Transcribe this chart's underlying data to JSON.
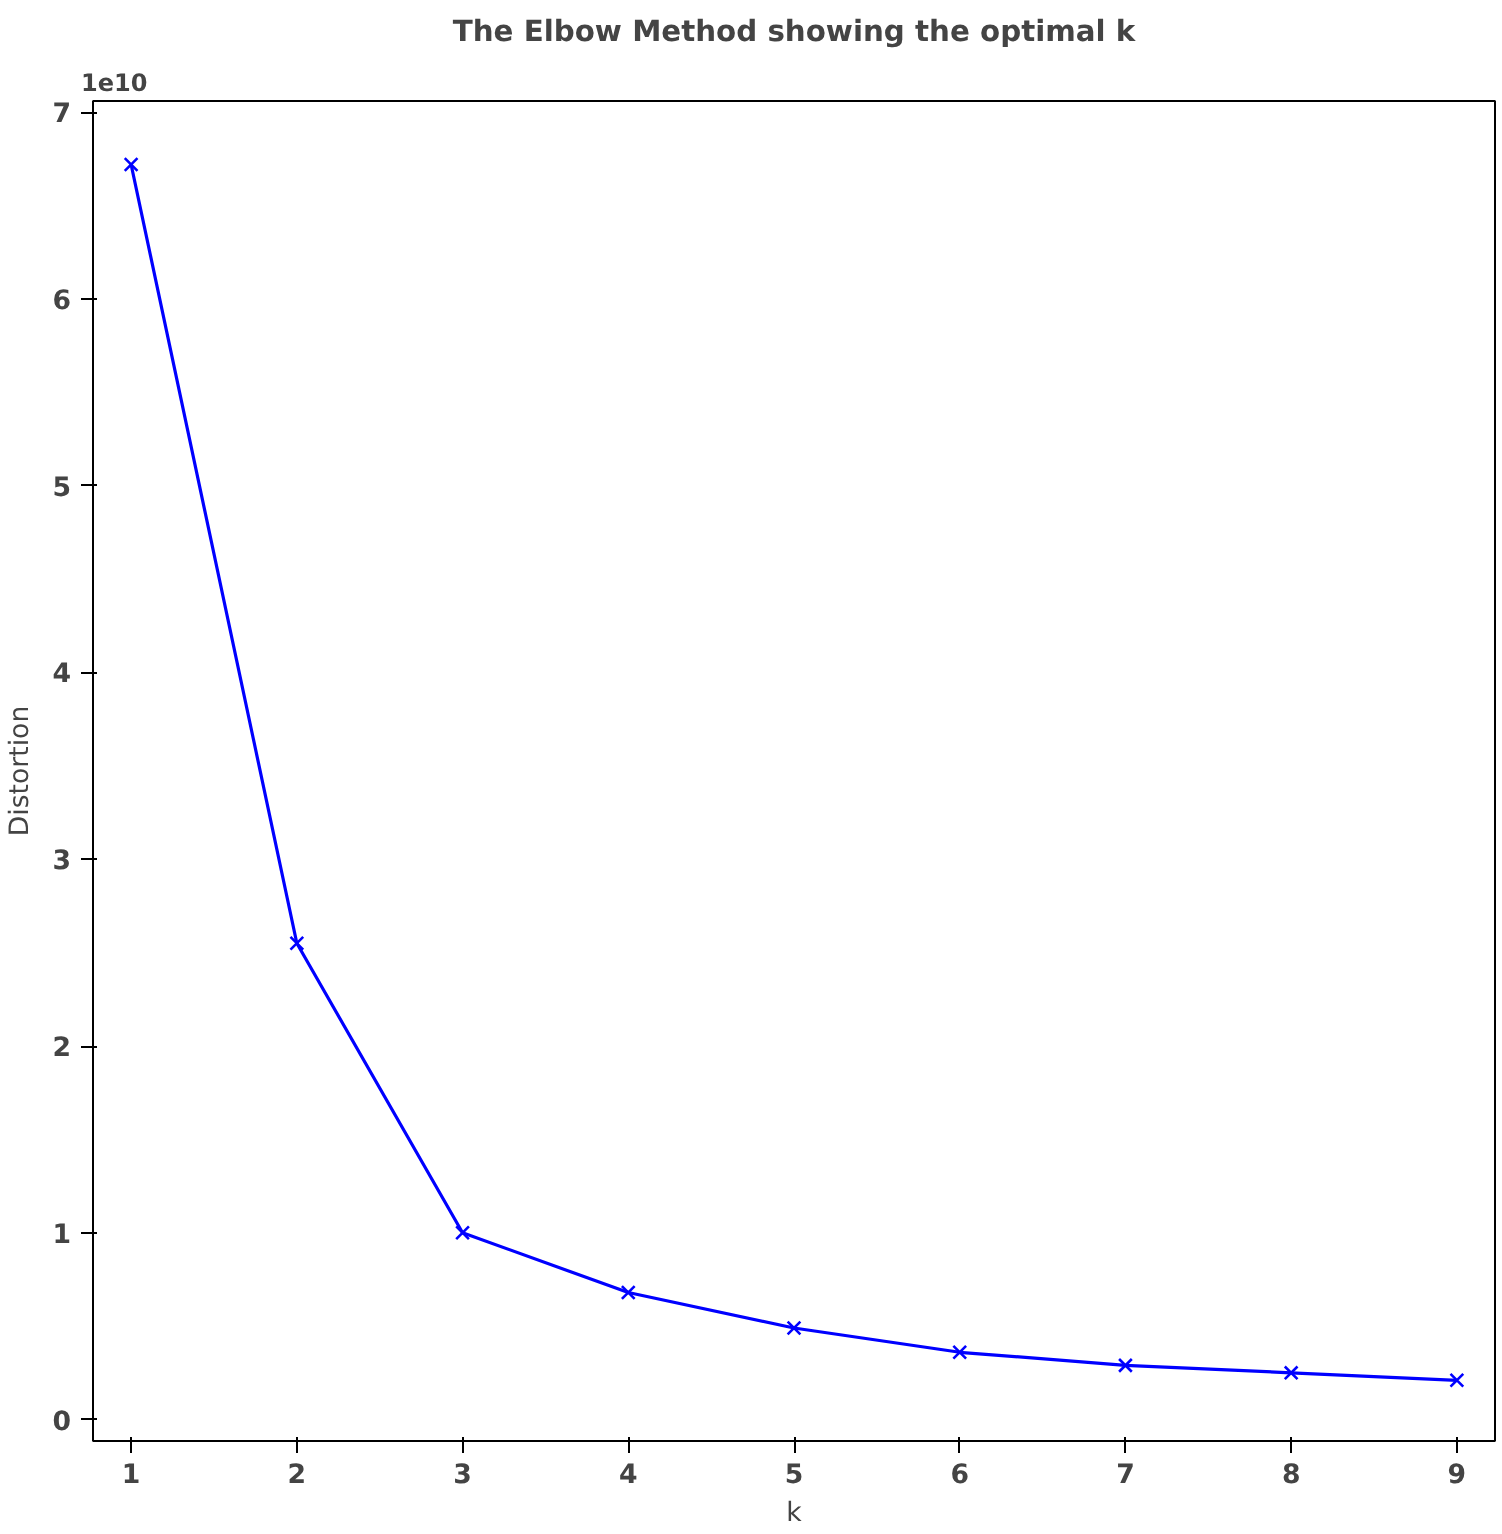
{
  "chart_data": {
    "type": "line",
    "title": "The Elbow Method showing the optimal k",
    "xlabel": "k",
    "ylabel": "Distortion",
    "annotations": [
      "1e10"
    ],
    "x": [
      1,
      2,
      3,
      4,
      5,
      6,
      7,
      8,
      9
    ],
    "series": [
      {
        "color": "#0000ff",
        "values": [
          6.72,
          2.55,
          1.0,
          0.68,
          0.49,
          0.36,
          0.29,
          0.25,
          0.21
        ]
      }
    ],
    "marker": "cross",
    "line_style": "solid",
    "grid": false,
    "xlim": [
      0.77,
      9.23
    ],
    "ylim": [
      -0.115,
      7.06
    ],
    "xticks": [
      1,
      2,
      3,
      4,
      5,
      6,
      7,
      8,
      9
    ],
    "yticks": [
      0,
      1,
      2,
      3,
      4,
      5,
      6,
      7
    ]
  }
}
